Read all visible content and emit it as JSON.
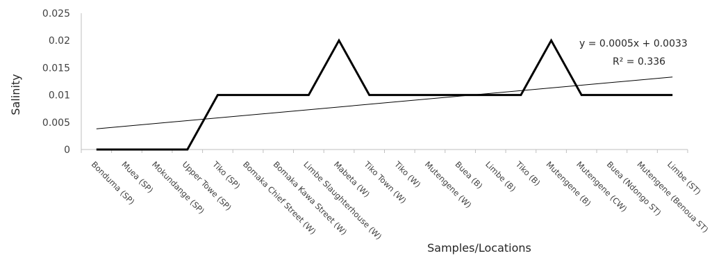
{
  "chart_data": {
    "type": "line",
    "title": "",
    "xlabel": "Samples/Locations",
    "ylabel": "Salinity",
    "ylim": [
      0,
      0.025
    ],
    "yticks": [
      "0",
      "0.005",
      "0.01",
      "0.015",
      "0.02",
      "0.025"
    ],
    "grid": false,
    "legend": "none",
    "categories": [
      "Bonduma (SP)",
      "Muea (SP)",
      "Mokundange (SP)",
      "Upper Towe (SP)",
      "Tiko (SP)",
      "Bomaka Chief Street (W)",
      "Bomaka Kawa Street (W)",
      "Limbe Slaughterhouse (W)",
      "Mabeta (W)",
      "Tiko Town (W)",
      "Tiko (W)",
      "Mutengene (W)",
      "Buea (B)",
      "Limbe (B)",
      "Tiko (B)",
      "Mutengene (B)",
      "Mutengene (CW)",
      "Buea (Ndongo ST)",
      "Mutengene (Benoua ST)",
      "Limbe (ST)"
    ],
    "series": [
      {
        "values": [
          0,
          0,
          0,
          0,
          0.01,
          0.01,
          0.01,
          0.01,
          0.02,
          0.01,
          0.01,
          0.01,
          0.01,
          0.01,
          0.01,
          0.02,
          0.01,
          0.01,
          0.01,
          0.01
        ],
        "color": "#000000"
      }
    ],
    "trendline": {
      "type": "linear",
      "slope": 0.0005,
      "intercept": 0.0033,
      "equation": "y = 0.0005x + 0.0033",
      "r2_label": "R² = 0.336",
      "color": "#000000"
    }
  }
}
